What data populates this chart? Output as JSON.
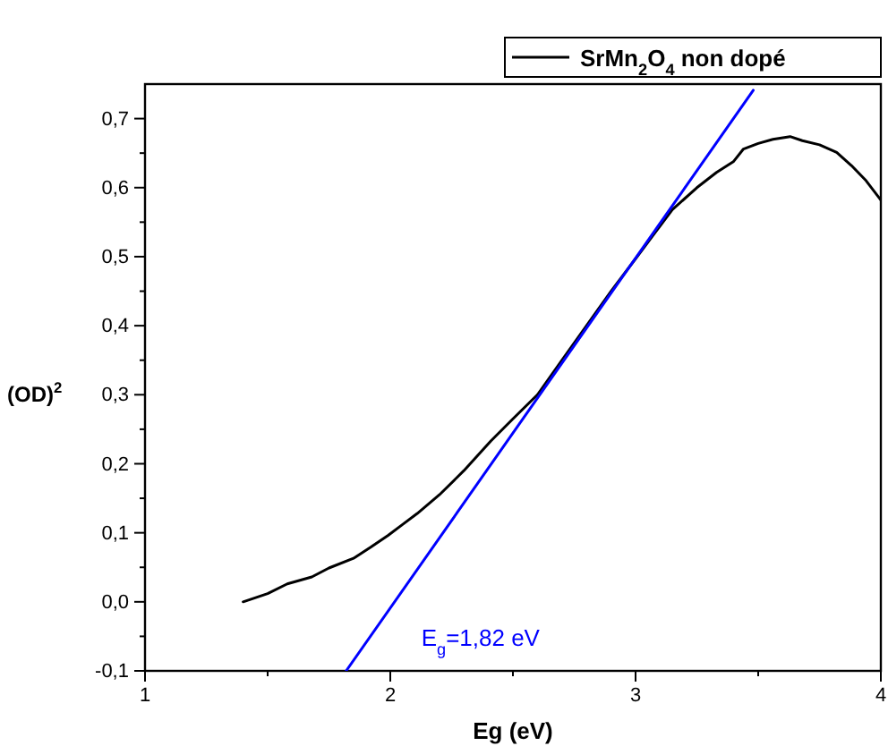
{
  "chart_data": {
    "type": "line",
    "xlabel": "Eg (eV)",
    "ylabel": "(OD)$^{2}$",
    "legend": "top right",
    "grid": false,
    "marker": "none",
    "line_style": "solid",
    "xlim": [
      1,
      4
    ],
    "ylim": [
      -0.1,
      0.75
    ],
    "xticks": [
      1,
      {
        "value": 1.5,
        "label": null
      },
      2,
      {
        "value": 2.5,
        "label": null
      },
      3,
      {
        "value": 3.5,
        "label": null
      },
      4
    ],
    "yticks": [
      {
        "value": -0.1,
        "label": "-0,1"
      },
      {
        "value": -0.05,
        "label": null
      },
      {
        "value": 0,
        "label": "0,0"
      },
      {
        "value": 0.05,
        "label": null
      },
      {
        "value": 0.1,
        "label": "0,1"
      },
      {
        "value": 0.15,
        "label": null
      },
      {
        "value": 0.2,
        "label": "0,2"
      },
      {
        "value": 0.25,
        "label": null
      },
      {
        "value": 0.3,
        "label": "0,3"
      },
      {
        "value": 0.35,
        "label": null
      },
      {
        "value": 0.4,
        "label": "0,4"
      },
      {
        "value": 0.45,
        "label": null
      },
      {
        "value": 0.5,
        "label": "0,5"
      },
      {
        "value": 0.55,
        "label": null
      },
      {
        "value": 0.6,
        "label": "0,6"
      },
      {
        "value": 0.65,
        "label": null
      },
      {
        "value": 0.7,
        "label": "0,7"
      }
    ],
    "series": [
      {
        "name": "SrMn$_{2}$O$_{4}$ non dopé",
        "color": "#000000",
        "x": [
          1.4,
          1.5,
          1.58,
          1.68,
          1.75,
          1.85,
          1.92,
          1.99,
          2.05,
          2.11,
          2.2,
          2.3,
          2.41,
          2.5,
          2.6,
          2.7,
          2.8,
          2.9,
          3.0,
          3.08,
          3.15,
          3.25,
          3.33,
          3.4,
          3.44,
          3.5,
          3.56,
          3.63,
          3.68,
          3.75,
          3.82,
          3.88,
          3.94,
          4.0
        ],
        "values": [
          0.0,
          0.012,
          0.026,
          0.036,
          0.049,
          0.063,
          0.079,
          0.096,
          0.112,
          0.128,
          0.155,
          0.19,
          0.233,
          0.265,
          0.3,
          0.35,
          0.4,
          0.45,
          0.497,
          0.535,
          0.568,
          0.6,
          0.622,
          0.638,
          0.656,
          0.664,
          0.67,
          0.674,
          0.668,
          0.662,
          0.651,
          0.632,
          0.61,
          0.582
        ]
      },
      {
        "type": "line",
        "color": "#0000ff",
        "x": [
          1.82,
          3.48
        ],
        "values": [
          -0.1,
          0.741
        ]
      }
    ],
    "annotations": [
      "E$_{g}$=1,82 eV"
    ]
  }
}
